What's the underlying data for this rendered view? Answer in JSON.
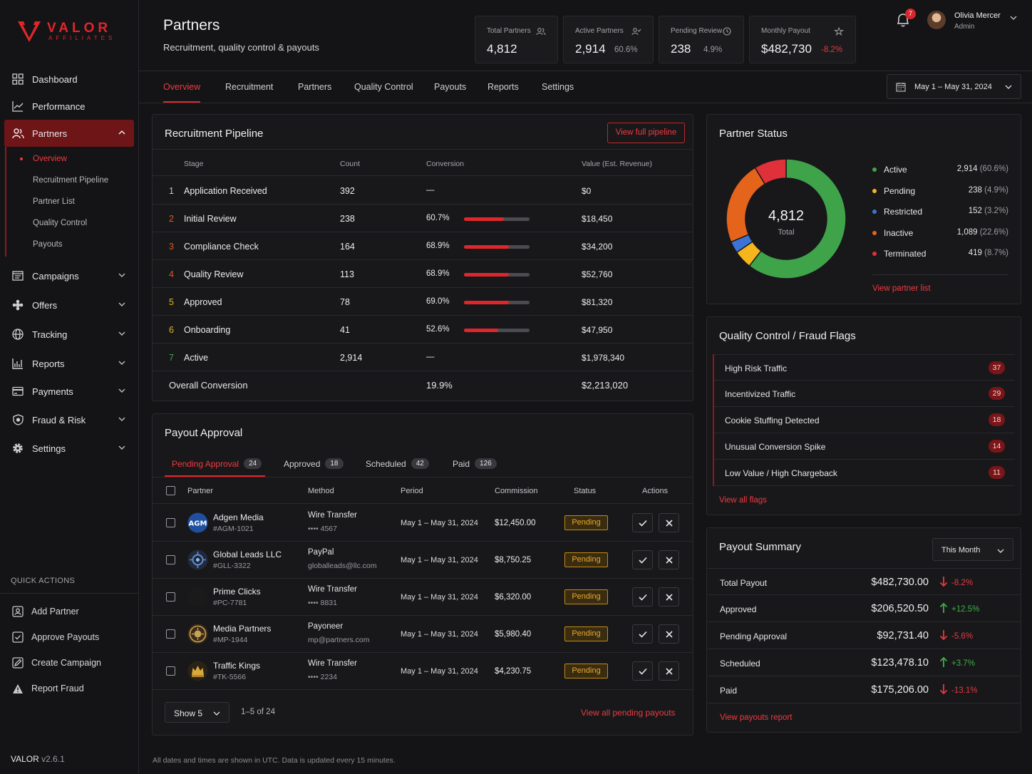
{
  "brand": {
    "name": "VALOR",
    "tagline": "AFFILIATES",
    "version_label": "VALOR",
    "version": "v2.6.1",
    "accent": "#e0262b"
  },
  "sidebar": {
    "items": [
      {
        "label": "Dashboard",
        "icon": "dashboard-icon"
      },
      {
        "label": "Performance",
        "icon": "chart-line-icon"
      },
      {
        "label": "Partners",
        "icon": "users-icon",
        "active": true,
        "expanded": true
      },
      {
        "label": "Campaigns",
        "icon": "campaign-icon"
      },
      {
        "label": "Offers",
        "icon": "offers-icon"
      },
      {
        "label": "Tracking",
        "icon": "globe-icon"
      },
      {
        "label": "Reports",
        "icon": "bar-chart-icon"
      },
      {
        "label": "Payments",
        "icon": "credit-card-icon"
      },
      {
        "label": "Fraud & Risk",
        "icon": "shield-icon"
      },
      {
        "label": "Settings",
        "icon": "gear-icon"
      }
    ],
    "partner_subitems": [
      "Overview",
      "Recruitment Pipeline",
      "Partner List",
      "Quality Control",
      "Payouts"
    ],
    "quick_actions_title": "QUICK ACTIONS",
    "quick_actions": [
      "Add Partner",
      "Approve Payouts",
      "Create Campaign",
      "Report Fraud"
    ]
  },
  "header": {
    "title": "Partners",
    "subtitle": "Recruitment, quality control & payouts",
    "kpis": [
      {
        "label": "Total Partners",
        "value": "4,812",
        "pct": ""
      },
      {
        "label": "Active Partners",
        "value": "2,914",
        "pct": "60.6%"
      },
      {
        "label": "Pending Review",
        "value": "238",
        "pct": "4.9%"
      },
      {
        "label": "Monthly Payout",
        "value": "$482,730",
        "pct": "-8.2%"
      }
    ],
    "notifications": "7",
    "user": {
      "name": "Olivia Mercer",
      "role": "Admin"
    }
  },
  "tabs": [
    "Overview",
    "Recruitment",
    "Partners",
    "Quality Control",
    "Payouts",
    "Reports",
    "Settings"
  ],
  "date_range": "May 1 – May 31, 2024",
  "pipeline": {
    "title": "Recruitment Pipeline",
    "button": "View full pipeline",
    "columns": [
      "Stage",
      "Count",
      "Conversion",
      "Value (Est. Revenue)"
    ],
    "rows": [
      {
        "n": "1",
        "stage": "Application Received",
        "count": "392",
        "conv": "—",
        "conv_pct": null,
        "value": "$0"
      },
      {
        "n": "2",
        "stage": "Initial Review",
        "count": "238",
        "conv": "60.7%",
        "conv_pct": 60.7,
        "value": "$18,450"
      },
      {
        "n": "3",
        "stage": "Compliance Check",
        "count": "164",
        "conv": "68.9%",
        "conv_pct": 68.9,
        "value": "$34,200"
      },
      {
        "n": "4",
        "stage": "Quality Review",
        "count": "113",
        "conv": "68.9%",
        "conv_pct": 68.9,
        "value": "$52,760"
      },
      {
        "n": "5",
        "stage": "Approved",
        "count": "78",
        "conv": "69.0%",
        "conv_pct": 69.0,
        "value": "$81,320"
      },
      {
        "n": "6",
        "stage": "Onboarding",
        "count": "41",
        "conv": "52.6%",
        "conv_pct": 52.6,
        "value": "$47,950"
      },
      {
        "n": "7",
        "stage": "Active",
        "count": "2,914",
        "conv": "—",
        "conv_pct": null,
        "value": "$1,978,340"
      }
    ],
    "total_label": "Overall Conversion",
    "total_conv": "19.9%",
    "total_value": "$2,213,020"
  },
  "payout_approval": {
    "title": "Payout Approval",
    "tabs": [
      {
        "label": "Pending Approval",
        "count": "24"
      },
      {
        "label": "Approved",
        "count": "18"
      },
      {
        "label": "Scheduled",
        "count": "42"
      },
      {
        "label": "Paid",
        "count": "126"
      }
    ],
    "columns": [
      "Partner",
      "Method",
      "Period",
      "Commission",
      "Status",
      "Actions"
    ],
    "rows": [
      {
        "name": "Adgen Media",
        "id": "#AGM-1021",
        "logo_text": "AGM",
        "method": "Wire Transfer",
        "account": "•••• 4567",
        "period": "May 1 – May 31, 2024",
        "commission": "$12,450.00",
        "status": "Pending"
      },
      {
        "name": "Global Leads LLC",
        "id": "#GLL-3322",
        "logo_text": "",
        "method": "PayPal",
        "account": "globalleads@llc.com",
        "period": "May 1 – May 31, 2024",
        "commission": "$8,750.25",
        "status": "Pending"
      },
      {
        "name": "Prime Clicks",
        "id": "#PC-7781",
        "logo_text": "",
        "method": "Wire Transfer",
        "account": "•••• 8831",
        "period": "May 1 – May 31, 2024",
        "commission": "$6,320.00",
        "status": "Pending"
      },
      {
        "name": "Media Partners",
        "id": "#MP-1944",
        "logo_text": "",
        "method": "Payoneer",
        "account": "mp@partners.com",
        "period": "May 1 – May 31, 2024",
        "commission": "$5,980.40",
        "status": "Pending"
      },
      {
        "name": "Traffic Kings",
        "id": "#TK-5566",
        "logo_text": "",
        "method": "Wire Transfer",
        "account": "•••• 2234",
        "period": "May 1 – May 31, 2024",
        "commission": "$4,230.75",
        "status": "Pending"
      }
    ],
    "show_label": "Show 5",
    "pager": "1–5 of 24",
    "view_all": "View all pending payouts"
  },
  "partner_status": {
    "title": "Partner Status",
    "total": "4,812",
    "total_label": "Total",
    "segments": [
      {
        "name": "Active",
        "value": "2,914",
        "pct": "(60.6%)",
        "num": 2914,
        "color": "#3fa34a"
      },
      {
        "name": "Pending",
        "value": "238",
        "pct": "(4.9%)",
        "num": 238,
        "color": "#f5b51c"
      },
      {
        "name": "Restricted",
        "value": "152",
        "pct": "(3.2%)",
        "num": 152,
        "color": "#3b74d6"
      },
      {
        "name": "Inactive",
        "value": "1,089",
        "pct": "(22.6%)",
        "num": 1089,
        "color": "#e5641c"
      },
      {
        "name": "Terminated",
        "value": "419",
        "pct": "(8.7%)",
        "num": 419,
        "color": "#e0303a"
      }
    ],
    "link": "View partner list"
  },
  "quality_control": {
    "title": "Quality Control / Fraud Flags",
    "flags": [
      {
        "name": "High Risk Traffic",
        "count": "37"
      },
      {
        "name": "Incentivized Traffic",
        "count": "29"
      },
      {
        "name": "Cookie Stuffing Detected",
        "count": "18"
      },
      {
        "name": "Unusual Conversion Spike",
        "count": "14"
      },
      {
        "name": "Low Value / High Chargeback",
        "count": "11"
      }
    ],
    "link": "View all flags"
  },
  "payout_summary": {
    "title": "Payout Summary",
    "period": "This Month",
    "rows": [
      {
        "label": "Total Payout",
        "value": "$482,730.00",
        "change": "-8.2%",
        "dir": "down"
      },
      {
        "label": "Approved",
        "value": "$206,520.50",
        "change": "+12.5%",
        "dir": "up"
      },
      {
        "label": "Pending Approval",
        "value": "$92,731.40",
        "change": "-5.6%",
        "dir": "down"
      },
      {
        "label": "Scheduled",
        "value": "$123,478.10",
        "change": "+3.7%",
        "dir": "up"
      },
      {
        "label": "Paid",
        "value": "$175,206.00",
        "change": "-13.1%",
        "dir": "down"
      }
    ],
    "link": "View payouts report"
  },
  "footer": "All dates and times are shown in UTC. Data is updated every 15 minutes."
}
